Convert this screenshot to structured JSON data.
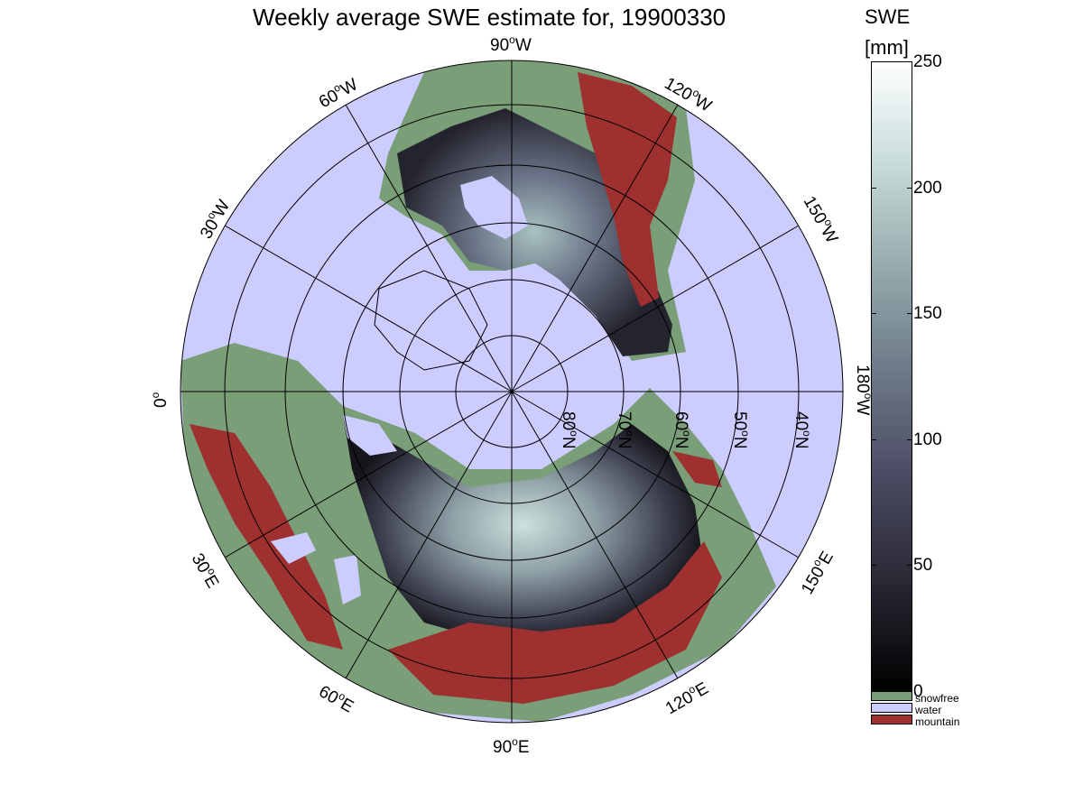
{
  "title": "Weekly average SWE estimate for, 19900330",
  "colorbar": {
    "label_line1": "SWE",
    "label_line2": "[mm]",
    "min": 0,
    "max": 250,
    "ticks": [
      "0",
      "50",
      "100",
      "150",
      "200",
      "250"
    ],
    "gradient": [
      "#000000",
      "#2a2a36",
      "#4d4d66",
      "#6f7d8a",
      "#9db3b3",
      "#cfe0e0",
      "#ffffff"
    ]
  },
  "legend": [
    {
      "label": "snowfree",
      "color": "#7a9e78"
    },
    {
      "label": "water",
      "color": "#ccccff"
    },
    {
      "label": "mountain",
      "color": "#9e3030"
    }
  ],
  "longitude_labels": {
    "lon_90W": "90",
    "lon_90W_unit": "W",
    "lon_60W": "60",
    "lon_60W_unit": "W",
    "lon_120W": "120",
    "lon_120W_unit": "W",
    "lon_30W": "30",
    "lon_30W_unit": "W",
    "lon_150W": "150",
    "lon_150W_unit": "W",
    "lon_0": "0",
    "lon_180W": "180",
    "lon_180W_unit": "W",
    "lon_30E": "30",
    "lon_30E_unit": "E",
    "lon_150E": "150",
    "lon_150E_unit": "E",
    "lon_60E": "60",
    "lon_60E_unit": "E",
    "lon_120E": "120",
    "lon_120E_unit": "E",
    "lon_90E": "90",
    "lon_90E_unit": "E"
  },
  "latitude_labels": {
    "lat_80": "80",
    "lat_70": "70",
    "lat_60": "60",
    "lat_50": "50",
    "lat_40": "40",
    "unit": "N"
  },
  "colors": {
    "water": "#ccccff",
    "snowfree": "#7a9e78",
    "mountain": "#9e3030",
    "snow_dark": "#1c1c24",
    "snow_mid": "#5d6478",
    "snow_light": "#bcd4d0"
  }
}
